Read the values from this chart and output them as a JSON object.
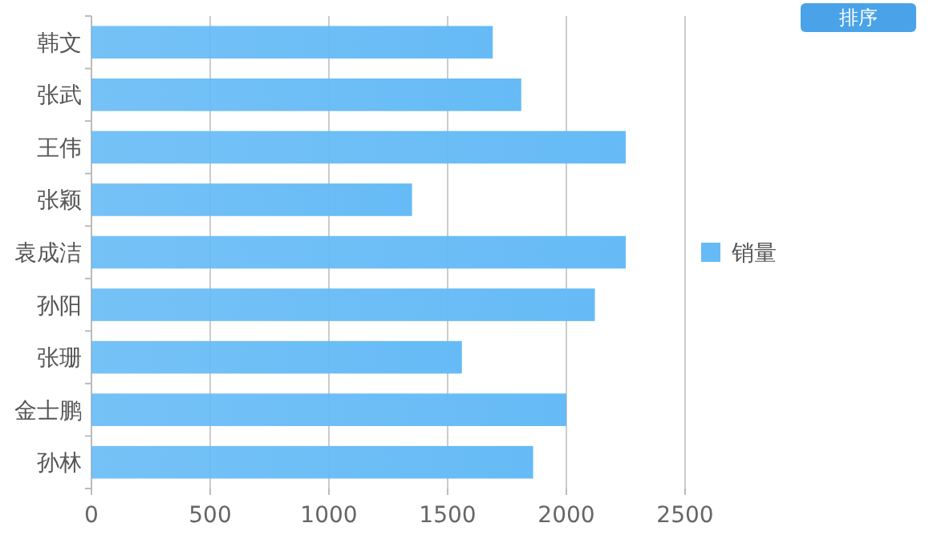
{
  "chart_data": {
    "type": "bar",
    "orientation": "horizontal",
    "categories": [
      "韩文",
      "张武",
      "王伟",
      "张颖",
      "袁成洁",
      "孙阳",
      "张珊",
      "金士鹏",
      "孙林"
    ],
    "series": [
      {
        "name": "销量",
        "color": "#66bbf6",
        "values": [
          1690,
          1810,
          2250,
          1350,
          2250,
          2120,
          1560,
          2000,
          1860
        ]
      }
    ],
    "xlim": [
      0,
      2500
    ],
    "xticks": [
      0,
      500,
      1000,
      1500,
      2000,
      2500
    ],
    "grid": "x",
    "legend": "right",
    "annotations": [
      "排序"
    ]
  }
}
